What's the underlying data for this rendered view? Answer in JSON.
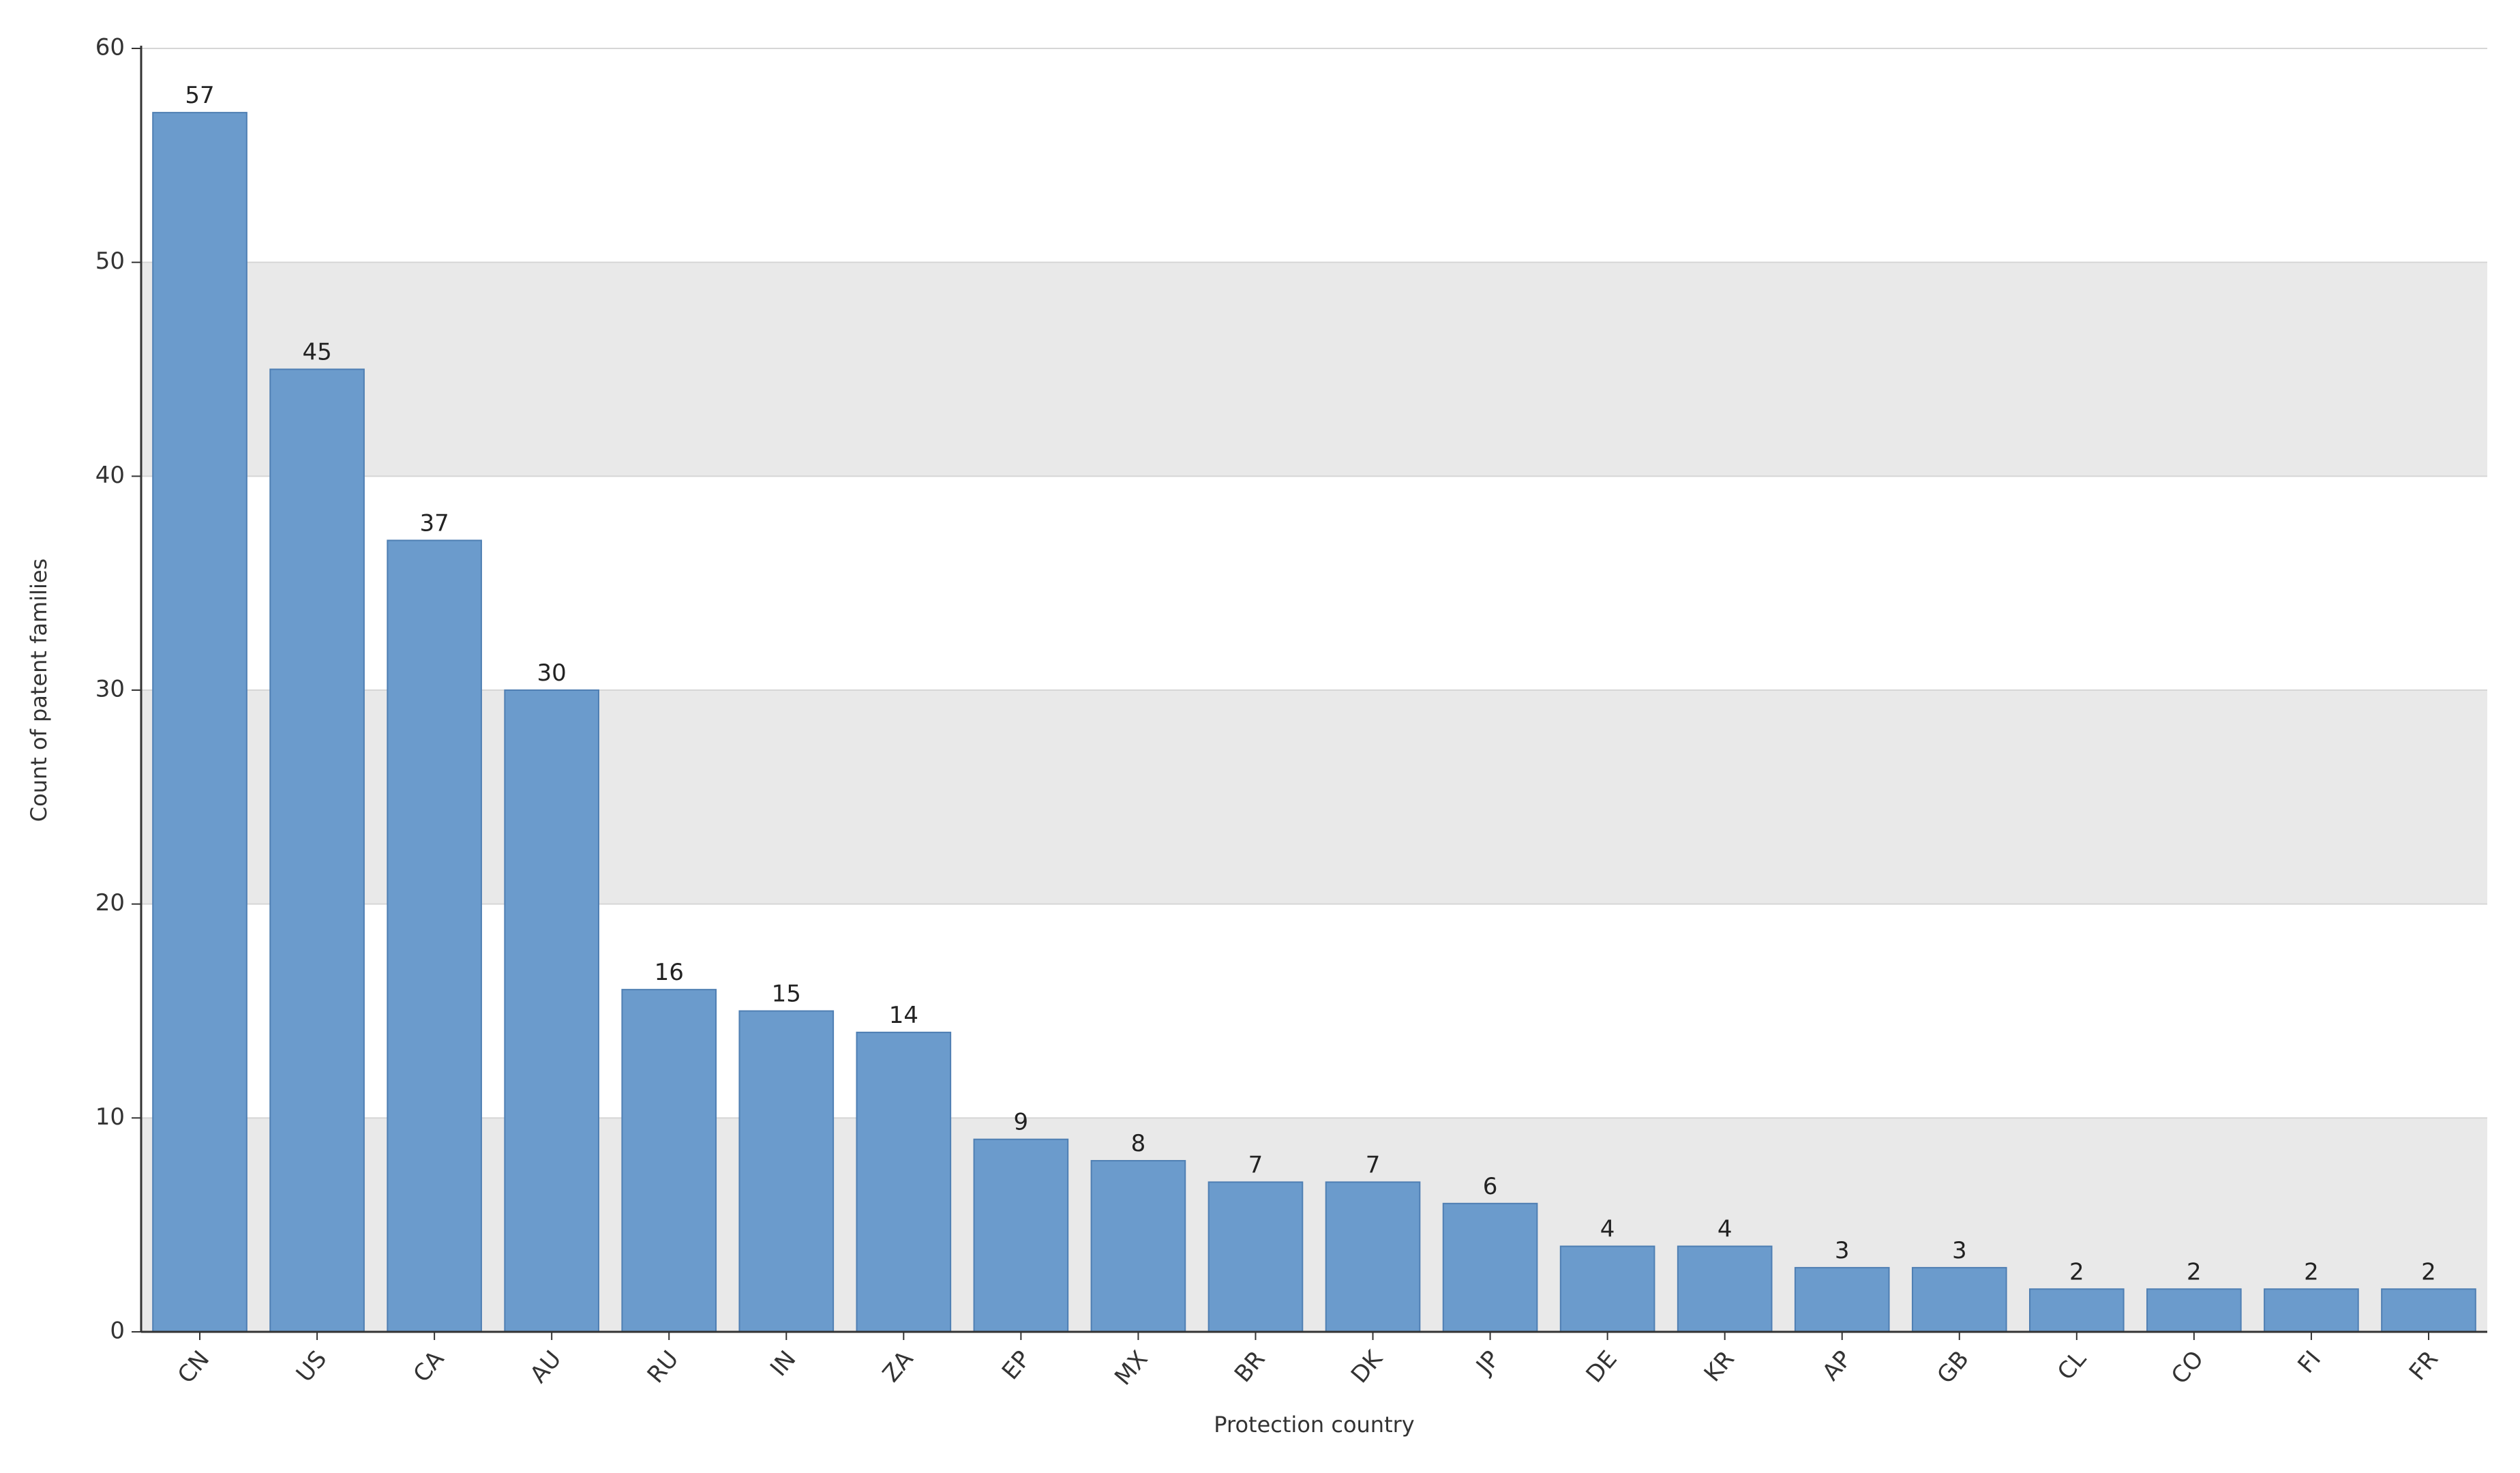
{
  "chart_data": {
    "type": "bar",
    "title": "",
    "xlabel": "Protection country",
    "ylabel": "Count of patent families",
    "ylim": [
      0,
      60
    ],
    "yticks": [
      0,
      10,
      20,
      30,
      40,
      50,
      60
    ],
    "grid": "horizontal bands",
    "categories": [
      "CN",
      "US",
      "CA",
      "AU",
      "RU",
      "IN",
      "ZA",
      "EP",
      "MX",
      "BR",
      "DK",
      "JP",
      "DE",
      "KR",
      "AP",
      "GB",
      "CL",
      "CO",
      "FI",
      "FR"
    ],
    "values": [
      57,
      45,
      37,
      30,
      16,
      15,
      14,
      9,
      8,
      7,
      7,
      6,
      4,
      4,
      3,
      3,
      2,
      2,
      2,
      2
    ],
    "colors": {
      "bar_fill": "#6b9bcc",
      "bar_stroke": "#4f7fb3",
      "band": "#e9e9e9",
      "axis": "#333333"
    }
  }
}
